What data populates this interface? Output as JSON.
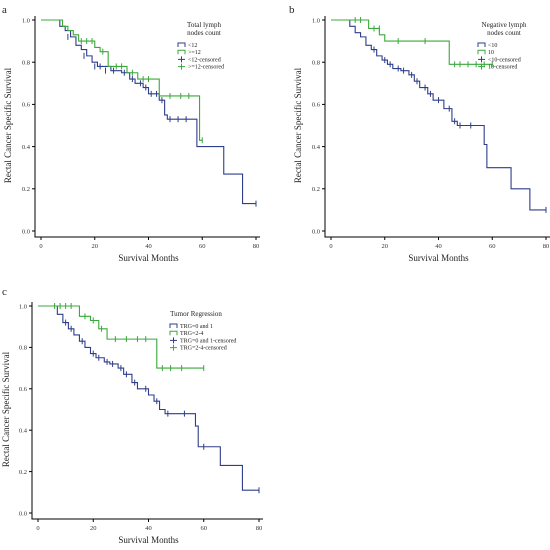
{
  "colors": {
    "blue": "#2e3d8c",
    "green": "#3aa83a"
  },
  "chart_data": [
    {
      "type": "line",
      "panel_label": "a",
      "xlabel": "Survival Months",
      "ylabel": "Rectal Cancer Specific Survival",
      "xlim": [
        0,
        80
      ],
      "ylim": [
        0,
        1.0
      ],
      "xticks": [
        "0",
        "20",
        "40",
        "60",
        "80"
      ],
      "yticks": [
        "0.0",
        "0.2",
        "0.4",
        "0.6",
        "0.8",
        "1.0"
      ],
      "legend_title": [
        "Total lymph",
        "nodes count"
      ],
      "legend": [
        "<12",
        ">=12",
        "<12-censored",
        ">=12-censored"
      ],
      "series": [
        {
          "color": "blue",
          "steps": [
            [
              0,
              1.0
            ],
            [
              5,
              1.0
            ],
            [
              7,
              0.97
            ],
            [
              9,
              0.95
            ],
            [
              11,
              0.92
            ],
            [
              13,
              0.88
            ],
            [
              15,
              0.86
            ],
            [
              17,
              0.83
            ],
            [
              19,
              0.8
            ],
            [
              21,
              0.78
            ],
            [
              26,
              0.76
            ],
            [
              30,
              0.75
            ],
            [
              33,
              0.72
            ],
            [
              35,
              0.7
            ],
            [
              38,
              0.68
            ],
            [
              40,
              0.65
            ],
            [
              44,
              0.62
            ],
            [
              46,
              0.55
            ],
            [
              47,
              0.53
            ],
            [
              56,
              0.53
            ],
            [
              58,
              0.4
            ],
            [
              67,
              0.4
            ],
            [
              68,
              0.27
            ],
            [
              74,
              0.27
            ],
            [
              75,
              0.13
            ],
            [
              80,
              0.13
            ]
          ],
          "censored": [
            [
              10,
              0.92
            ],
            [
              16,
              0.83
            ],
            [
              20,
              0.78
            ],
            [
              22,
              0.78
            ],
            [
              24,
              0.76
            ],
            [
              27,
              0.76
            ],
            [
              31,
              0.75
            ],
            [
              34,
              0.72
            ],
            [
              37,
              0.7
            ],
            [
              39,
              0.68
            ],
            [
              41,
              0.65
            ],
            [
              43,
              0.65
            ],
            [
              45,
              0.62
            ],
            [
              48,
              0.53
            ],
            [
              51,
              0.53
            ],
            [
              54,
              0.53
            ],
            [
              80,
              0.13
            ]
          ]
        },
        {
          "color": "green",
          "steps": [
            [
              0,
              1.0
            ],
            [
              6,
              1.0
            ],
            [
              8,
              0.97
            ],
            [
              10,
              0.95
            ],
            [
              12,
              0.93
            ],
            [
              14,
              0.9
            ],
            [
              20,
              0.87
            ],
            [
              22,
              0.85
            ],
            [
              25,
              0.78
            ],
            [
              32,
              0.75
            ],
            [
              36,
              0.72
            ],
            [
              42,
              0.72
            ],
            [
              44,
              0.64
            ],
            [
              57,
              0.64
            ],
            [
              59,
              0.43
            ],
            [
              60,
              0.43
            ]
          ],
          "censored": [
            [
              15,
              0.9
            ],
            [
              17,
              0.9
            ],
            [
              19,
              0.9
            ],
            [
              23,
              0.85
            ],
            [
              28,
              0.78
            ],
            [
              30,
              0.78
            ],
            [
              34,
              0.75
            ],
            [
              38,
              0.72
            ],
            [
              40,
              0.72
            ],
            [
              48,
              0.64
            ],
            [
              52,
              0.64
            ],
            [
              55,
              0.64
            ],
            [
              60,
              0.43
            ]
          ]
        }
      ]
    },
    {
      "type": "line",
      "panel_label": "b",
      "xlabel": "Survival Months",
      "ylabel": "Rectal Cancer Specific Survival",
      "xlim": [
        0,
        80
      ],
      "ylim": [
        0,
        1.0
      ],
      "xticks": [
        "0",
        "20",
        "40",
        "60",
        "80"
      ],
      "yticks": [
        "0.0",
        "0.2",
        "0.4",
        "0.6",
        "0.8",
        "1.0"
      ],
      "legend_title": [
        "Negative lymph",
        "nodes count"
      ],
      "legend": [
        "<10",
        "10",
        "<10-censored",
        "10-censored"
      ],
      "series": [
        {
          "color": "blue",
          "steps": [
            [
              0,
              1.0
            ],
            [
              5,
              1.0
            ],
            [
              7,
              0.97
            ],
            [
              9,
              0.94
            ],
            [
              11,
              0.92
            ],
            [
              13,
              0.88
            ],
            [
              15,
              0.86
            ],
            [
              17,
              0.83
            ],
            [
              19,
              0.81
            ],
            [
              21,
              0.79
            ],
            [
              23,
              0.77
            ],
            [
              26,
              0.76
            ],
            [
              29,
              0.74
            ],
            [
              31,
              0.71
            ],
            [
              33,
              0.68
            ],
            [
              36,
              0.65
            ],
            [
              38,
              0.62
            ],
            [
              42,
              0.58
            ],
            [
              45,
              0.52
            ],
            [
              47,
              0.5
            ],
            [
              56,
              0.5
            ],
            [
              57,
              0.41
            ],
            [
              58,
              0.3
            ],
            [
              66,
              0.3
            ],
            [
              67,
              0.2
            ],
            [
              73,
              0.2
            ],
            [
              74,
              0.1
            ],
            [
              80,
              0.1
            ]
          ],
          "censored": [
            [
              16,
              0.86
            ],
            [
              20,
              0.81
            ],
            [
              22,
              0.79
            ],
            [
              25,
              0.77
            ],
            [
              27,
              0.76
            ],
            [
              30,
              0.74
            ],
            [
              32,
              0.71
            ],
            [
              35,
              0.68
            ],
            [
              37,
              0.65
            ],
            [
              40,
              0.62
            ],
            [
              44,
              0.58
            ],
            [
              46,
              0.52
            ],
            [
              48,
              0.5
            ],
            [
              52,
              0.5
            ],
            [
              80,
              0.1
            ]
          ]
        },
        {
          "color": "green",
          "steps": [
            [
              0,
              1.0
            ],
            [
              12,
              1.0
            ],
            [
              14,
              0.96
            ],
            [
              18,
              0.93
            ],
            [
              20,
              0.9
            ],
            [
              42,
              0.9
            ],
            [
              44,
              0.79
            ],
            [
              60,
              0.79
            ]
          ],
          "censored": [
            [
              9,
              1.0
            ],
            [
              11,
              1.0
            ],
            [
              16,
              0.96
            ],
            [
              18,
              0.96
            ],
            [
              25,
              0.9
            ],
            [
              35,
              0.9
            ],
            [
              46,
              0.79
            ],
            [
              48,
              0.79
            ],
            [
              51,
              0.79
            ],
            [
              54,
              0.79
            ],
            [
              57,
              0.79
            ],
            [
              60,
              0.79
            ]
          ]
        }
      ]
    },
    {
      "type": "line",
      "panel_label": "c",
      "xlabel": "Survival Months",
      "ylabel": "Rectal Cancer Specific Survival",
      "xlim": [
        0,
        80
      ],
      "ylim": [
        0,
        1.0
      ],
      "xticks": [
        "0",
        "20",
        "40",
        "60",
        "80"
      ],
      "yticks": [
        "0.0",
        "0.2",
        "0.4",
        "0.6",
        "0.8",
        "1.0"
      ],
      "legend_title": [
        "Tumor Regression"
      ],
      "legend": [
        "TRG=0 and 1",
        "TRG=2-4",
        "TRG=0 and 1-censored",
        "TRG=2-4-censored"
      ],
      "series": [
        {
          "color": "blue",
          "steps": [
            [
              0,
              1.0
            ],
            [
              5,
              1.0
            ],
            [
              7,
              0.96
            ],
            [
              9,
              0.92
            ],
            [
              11,
              0.89
            ],
            [
              13,
              0.86
            ],
            [
              15,
              0.83
            ],
            [
              17,
              0.8
            ],
            [
              19,
              0.77
            ],
            [
              21,
              0.75
            ],
            [
              24,
              0.73
            ],
            [
              26,
              0.72
            ],
            [
              29,
              0.7
            ],
            [
              31,
              0.67
            ],
            [
              34,
              0.63
            ],
            [
              36,
              0.6
            ],
            [
              40,
              0.57
            ],
            [
              42,
              0.54
            ],
            [
              44,
              0.5
            ],
            [
              46,
              0.48
            ],
            [
              56,
              0.48
            ],
            [
              57,
              0.42
            ],
            [
              58,
              0.32
            ],
            [
              64,
              0.32
            ],
            [
              66,
              0.23
            ],
            [
              73,
              0.23
            ],
            [
              74,
              0.11
            ],
            [
              80,
              0.11
            ]
          ],
          "censored": [
            [
              10,
              0.92
            ],
            [
              12,
              0.89
            ],
            [
              16,
              0.83
            ],
            [
              20,
              0.77
            ],
            [
              22,
              0.75
            ],
            [
              25,
              0.73
            ],
            [
              27,
              0.72
            ],
            [
              30,
              0.7
            ],
            [
              32,
              0.67
            ],
            [
              35,
              0.63
            ],
            [
              39,
              0.6
            ],
            [
              43,
              0.54
            ],
            [
              47,
              0.48
            ],
            [
              53,
              0.48
            ],
            [
              60,
              0.32
            ],
            [
              80,
              0.11
            ]
          ]
        },
        {
          "color": "green",
          "steps": [
            [
              0,
              1.0
            ],
            [
              13,
              1.0
            ],
            [
              15,
              0.95
            ],
            [
              19,
              0.93
            ],
            [
              22,
              0.89
            ],
            [
              25,
              0.84
            ],
            [
              41,
              0.84
            ],
            [
              43,
              0.7
            ],
            [
              60,
              0.7
            ]
          ],
          "censored": [
            [
              6,
              1.0
            ],
            [
              8,
              1.0
            ],
            [
              10,
              1.0
            ],
            [
              12,
              1.0
            ],
            [
              17,
              0.95
            ],
            [
              20,
              0.93
            ],
            [
              23,
              0.89
            ],
            [
              28,
              0.84
            ],
            [
              32,
              0.84
            ],
            [
              36,
              0.84
            ],
            [
              39,
              0.84
            ],
            [
              45,
              0.7
            ],
            [
              48,
              0.7
            ],
            [
              52,
              0.7
            ],
            [
              60,
              0.7
            ]
          ]
        }
      ]
    }
  ]
}
